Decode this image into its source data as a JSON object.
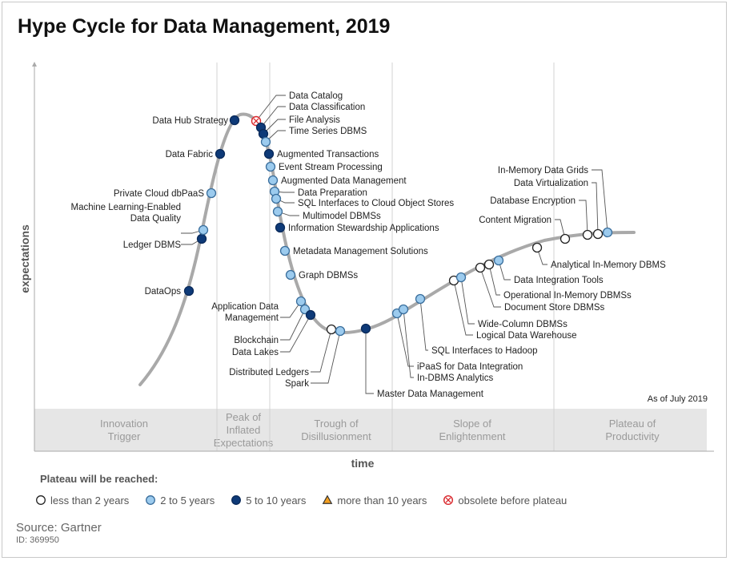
{
  "title": "Hype Cycle for Data Management, 2019",
  "axes": {
    "y_label": "expectations",
    "x_label": "time"
  },
  "as_of": "As of July 2019",
  "phases": [
    [
      "Innovation",
      "Trigger"
    ],
    [
      "Peak of",
      "Inflated",
      "Expectations"
    ],
    [
      "Trough of",
      "Disillusionment"
    ],
    [
      "Slope of",
      "Enlightenment"
    ],
    [
      "Plateau of",
      "Productivity"
    ]
  ],
  "legend": {
    "heading": "Plateau will be reached:",
    "items": [
      {
        "key": "lt2",
        "label": "less than 2 years",
        "shape": "circle",
        "fill": "#ffffff",
        "stroke": "#222222"
      },
      {
        "key": "2to5",
        "label": "2 to 5 years",
        "shape": "circle",
        "fill": "#9ccbee",
        "stroke": "#3a6e9c"
      },
      {
        "key": "5to10",
        "label": "5 to 10 years",
        "shape": "circle",
        "fill": "#0e3a78",
        "stroke": "#0a2a5a"
      },
      {
        "key": "gt10",
        "label": "more than 10 years",
        "shape": "triangle",
        "fill": "#f5a020",
        "stroke": "#333333"
      },
      {
        "key": "obsolete",
        "label": "obsolete before plateau",
        "shape": "cross",
        "fill": "#ffffff",
        "stroke": "#d9262b"
      }
    ]
  },
  "technologies": [
    {
      "name": "DataOps",
      "cat": "5to10"
    },
    {
      "name": "Ledger DBMS",
      "cat": "5to10"
    },
    {
      "name": "Machine Learning-Enabled\nData Quality",
      "cat": "2to5"
    },
    {
      "name": "Private Cloud dbPaaS",
      "cat": "2to5"
    },
    {
      "name": "Data Fabric",
      "cat": "5to10"
    },
    {
      "name": "Data Hub Strategy",
      "cat": "5to10"
    },
    {
      "name": "Data Catalog",
      "cat": "obsolete"
    },
    {
      "name": "Data Classification",
      "cat": "5to10"
    },
    {
      "name": "File Analysis",
      "cat": "5to10"
    },
    {
      "name": "Time Series DBMS",
      "cat": "2to5"
    },
    {
      "name": "Augmented Transactions",
      "cat": "5to10"
    },
    {
      "name": "Event Stream Processing",
      "cat": "2to5"
    },
    {
      "name": "Augmented Data Management",
      "cat": "2to5"
    },
    {
      "name": "Data Preparation",
      "cat": "2to5"
    },
    {
      "name": "SQL Interfaces to Cloud Object Stores",
      "cat": "2to5"
    },
    {
      "name": "Multimodel DBMSs",
      "cat": "2to5"
    },
    {
      "name": "Information Stewardship Applications",
      "cat": "5to10"
    },
    {
      "name": "Metadata Management Solutions",
      "cat": "2to5"
    },
    {
      "name": "Graph DBMSs",
      "cat": "2to5"
    },
    {
      "name": "Application Data\nManagement",
      "cat": "2to5"
    },
    {
      "name": "Blockchain",
      "cat": "2to5"
    },
    {
      "name": "Data Lakes",
      "cat": "5to10"
    },
    {
      "name": "Distributed Ledgers",
      "cat": "lt2"
    },
    {
      "name": "Spark",
      "cat": "2to5"
    },
    {
      "name": "Master Data Management",
      "cat": "5to10"
    },
    {
      "name": "iPaaS for Data Integration",
      "cat": "2to5"
    },
    {
      "name": "In-DBMS Analytics",
      "cat": "2to5"
    },
    {
      "name": "SQL Interfaces to Hadoop",
      "cat": "2to5"
    },
    {
      "name": "Logical Data Warehouse",
      "cat": "lt2"
    },
    {
      "name": "Wide-Column DBMSs",
      "cat": "2to5"
    },
    {
      "name": "Document Store DBMSs",
      "cat": "lt2"
    },
    {
      "name": "Operational In-Memory DBMSs",
      "cat": "lt2"
    },
    {
      "name": "Data Integration Tools",
      "cat": "2to5"
    },
    {
      "name": "Analytical In-Memory DBMS",
      "cat": "lt2"
    },
    {
      "name": "Content Migration",
      "cat": "lt2"
    },
    {
      "name": "Database Encryption",
      "cat": "lt2"
    },
    {
      "name": "Data Virtualization",
      "cat": "lt2"
    },
    {
      "name": "In-Memory Data Grids",
      "cat": "2to5"
    }
  ],
  "source": "Source: Gartner",
  "source_id": "ID: 369950"
}
